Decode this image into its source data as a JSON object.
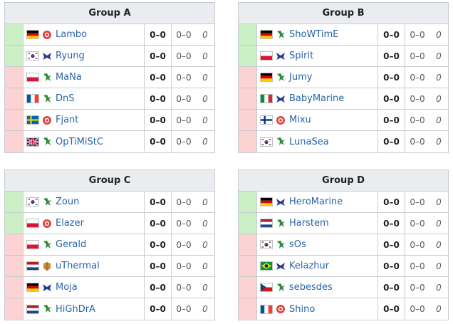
{
  "groups": [
    {
      "title": "Group A",
      "rows": [
        {
          "status": "adv",
          "flag": "de",
          "race": "zerg-red",
          "name": "Lambo",
          "score": "0–0",
          "games": "0–0",
          "diff": "0"
        },
        {
          "status": "adv",
          "flag": "kr",
          "race": "protoss",
          "name": "Ryung",
          "score": "0–0",
          "games": "0–0",
          "diff": "0"
        },
        {
          "status": "elim",
          "flag": "pl",
          "race": "terran",
          "name": "MaNa",
          "score": "0–0",
          "games": "0–0",
          "diff": "0"
        },
        {
          "status": "elim",
          "flag": "fr",
          "race": "terran",
          "name": "DnS",
          "score": "0–0",
          "games": "0–0",
          "diff": "0"
        },
        {
          "status": "elim",
          "flag": "se",
          "race": "zerg-red",
          "name": "Fjant",
          "score": "0–0",
          "games": "0–0",
          "diff": "0"
        },
        {
          "status": "elim",
          "flag": "gb",
          "race": "terran",
          "name": "OpTiMiStC",
          "score": "0–0",
          "games": "0–0",
          "diff": "0"
        }
      ]
    },
    {
      "title": "Group B",
      "rows": [
        {
          "status": "adv",
          "flag": "de",
          "race": "terran",
          "name": "ShoWTimE",
          "score": "0–0",
          "games": "0–0",
          "diff": "0"
        },
        {
          "status": "adv",
          "flag": "pl",
          "race": "protoss",
          "name": "Spirit",
          "score": "0–0",
          "games": "0–0",
          "diff": "0"
        },
        {
          "status": "elim",
          "flag": "de",
          "race": "terran",
          "name": "Jumy",
          "score": "0–0",
          "games": "0–0",
          "diff": "0"
        },
        {
          "status": "elim",
          "flag": "it",
          "race": "protoss",
          "name": "BabyMarine",
          "score": "0–0",
          "games": "0–0",
          "diff": "0"
        },
        {
          "status": "elim",
          "flag": "fi",
          "race": "zerg-red",
          "name": "Mixu",
          "score": "0–0",
          "games": "0–0",
          "diff": "0"
        },
        {
          "status": "elim",
          "flag": "kr",
          "race": "terran",
          "name": "LunaSea",
          "score": "0–0",
          "games": "0–0",
          "diff": "0"
        }
      ]
    },
    {
      "title": "Group C",
      "rows": [
        {
          "status": "adv",
          "flag": "kr",
          "race": "terran",
          "name": "Zoun",
          "score": "0–0",
          "games": "0–0",
          "diff": "0"
        },
        {
          "status": "adv",
          "flag": "pl",
          "race": "zerg-red",
          "name": "Elazer",
          "score": "0–0",
          "games": "0–0",
          "diff": "0"
        },
        {
          "status": "elim",
          "flag": "pl",
          "race": "terran",
          "name": "Gerald",
          "score": "0–0",
          "games": "0–0",
          "diff": "0"
        },
        {
          "status": "elim",
          "flag": "nl",
          "race": "random",
          "name": "uThermal",
          "score": "0–0",
          "games": "0–0",
          "diff": "0"
        },
        {
          "status": "elim",
          "flag": "de",
          "race": "protoss",
          "name": "Moja",
          "score": "0–0",
          "games": "0–0",
          "diff": "0"
        },
        {
          "status": "elim",
          "flag": "nl",
          "race": "terran",
          "name": "HiGhDrA",
          "score": "0–0",
          "games": "0–0",
          "diff": "0"
        }
      ]
    },
    {
      "title": "Group D",
      "rows": [
        {
          "status": "adv",
          "flag": "de",
          "race": "protoss",
          "name": "HeroMarine",
          "score": "0–0",
          "games": "0–0",
          "diff": "0"
        },
        {
          "status": "adv",
          "flag": "nl",
          "race": "terran",
          "name": "Harstem",
          "score": "0–0",
          "games": "0–0",
          "diff": "0"
        },
        {
          "status": "elim",
          "flag": "kr",
          "race": "terran",
          "name": "sOs",
          "score": "0–0",
          "games": "0–0",
          "diff": "0"
        },
        {
          "status": "elim",
          "flag": "br",
          "race": "protoss",
          "name": "Kelazhur",
          "score": "0–0",
          "games": "0–0",
          "diff": "0"
        },
        {
          "status": "elim",
          "flag": "cz",
          "race": "terran",
          "name": "sebesdes",
          "score": "0–0",
          "games": "0–0",
          "diff": "0"
        },
        {
          "status": "elim",
          "flag": "fr",
          "race": "zerg-red",
          "name": "Shino",
          "score": "0–0",
          "games": "0–0",
          "diff": "0"
        }
      ]
    }
  ],
  "colors": {
    "advance": "#ccf0c6",
    "eliminated": "#fbd3d3",
    "header": "#eaecf0",
    "link": "#2a64a8"
  }
}
